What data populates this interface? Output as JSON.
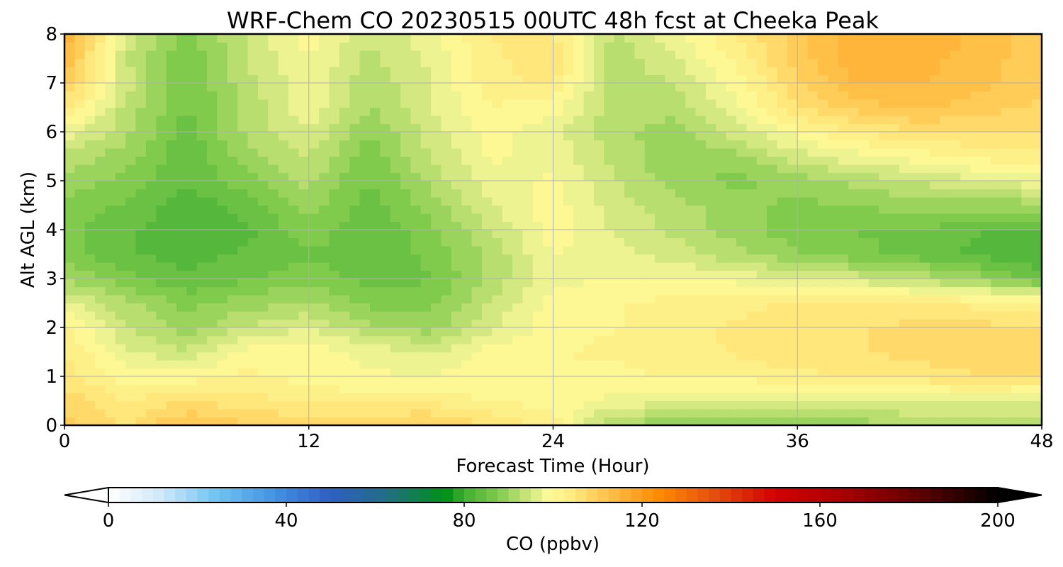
{
  "chart_data": {
    "type": "heatmap",
    "title": "WRF-Chem CO  20230515 00UTC 48h fcst at Cheeka Peak",
    "xlabel": "Forecast Time (Hour)",
    "ylabel": "Alt AGL (km)",
    "xlim": [
      0,
      48
    ],
    "ylim": [
      0,
      8
    ],
    "xticks": [
      0,
      12,
      24,
      36,
      48
    ],
    "yticks": [
      0,
      1,
      2,
      3,
      4,
      5,
      6,
      7,
      8
    ],
    "grid": true,
    "x": [
      0,
      3,
      6,
      9,
      12,
      15,
      18,
      21,
      24,
      27,
      30,
      33,
      36,
      39,
      42,
      45,
      48
    ],
    "y": [
      0,
      0.5,
      1,
      1.5,
      2,
      2.5,
      3,
      3.5,
      4,
      4.5,
      5,
      5.5,
      6,
      6.5,
      7,
      7.5,
      8
    ],
    "z": [
      [
        110,
        106,
        112,
        109,
        108,
        108,
        110,
        106,
        103,
        90,
        90,
        88,
        89,
        90,
        91,
        92,
        93
      ],
      [
        108,
        104,
        106,
        105,
        103,
        103,
        103,
        101,
        100,
        98,
        97,
        96,
        95,
        96,
        97,
        97,
        96
      ],
      [
        105,
        100,
        100,
        102,
        100,
        99,
        99,
        100,
        101,
        100,
        102,
        102,
        103,
        104,
        105,
        106,
        106
      ],
      [
        104,
        97,
        94,
        100,
        100,
        98,
        96,
        100,
        101,
        102,
        103,
        104,
        106,
        106,
        107,
        108,
        108
      ],
      [
        102,
        94,
        90,
        94,
        96,
        92,
        90,
        96,
        100,
        101,
        103,
        104,
        105,
        106,
        107,
        107,
        106
      ],
      [
        97,
        92,
        88,
        90,
        92,
        88,
        88,
        94,
        100,
        101,
        102,
        103,
        104,
        104,
        104,
        103,
        102
      ],
      [
        91,
        87,
        84,
        86,
        88,
        85,
        86,
        92,
        98,
        99,
        99,
        98,
        96,
        95,
        93,
        90,
        85
      ],
      [
        88,
        84,
        83,
        84,
        86,
        84,
        87,
        92,
        99,
        97,
        95,
        92,
        89,
        87,
        85,
        83,
        81
      ],
      [
        87,
        84,
        82,
        83,
        88,
        84,
        88,
        94,
        100,
        96,
        93,
        90,
        87,
        86,
        86,
        84,
        83
      ],
      [
        88,
        86,
        82,
        85,
        90,
        85,
        90,
        96,
        100,
        95,
        92,
        90,
        88,
        89,
        90,
        90,
        90
      ],
      [
        90,
        88,
        84,
        88,
        92,
        86,
        92,
        98,
        99,
        94,
        90,
        88,
        90,
        92,
        94,
        96,
        98
      ],
      [
        93,
        90,
        84,
        90,
        94,
        87,
        94,
        99,
        98,
        93,
        89,
        90,
        95,
        98,
        100,
        102,
        103
      ],
      [
        98,
        92,
        85,
        92,
        96,
        89,
        95,
        100,
        97,
        92,
        90,
        95,
        100,
        104,
        106,
        106,
        106
      ],
      [
        104,
        93,
        86,
        92,
        98,
        91,
        96,
        101,
        100,
        92,
        92,
        98,
        106,
        110,
        112,
        110,
        108
      ],
      [
        110,
        95,
        86,
        93,
        98,
        92,
        96,
        103,
        104,
        92,
        94,
        100,
        108,
        114,
        114,
        112,
        110
      ],
      [
        114,
        94,
        86,
        94,
        99,
        93,
        97,
        103,
        106,
        92,
        96,
        102,
        110,
        116,
        115,
        112,
        110
      ],
      [
        116,
        96,
        88,
        94,
        100,
        94,
        98,
        104,
        104,
        93,
        98,
        104,
        110,
        116,
        116,
        113,
        110
      ]
    ],
    "colorbar": {
      "label": "CO  (ppbv)",
      "min": 0,
      "max": 200,
      "ticks": [
        0,
        40,
        80,
        120,
        160,
        200
      ],
      "extend": "both",
      "colors": {
        "0": "#ffffff",
        "12": "#cfe8f8",
        "24": "#72c4f2",
        "38": "#4190e2",
        "50": "#2f5ec4",
        "62": "#236d88",
        "76": "#009215",
        "80": "#40ae32",
        "88": "#84cc4e",
        "94": "#c8e47a",
        "99": "#fdfa99",
        "104": "#ffec82",
        "110": "#ffcc57",
        "118": "#ffa528",
        "124": "#ff8a00",
        "136": "#e64f0e",
        "150": "#d20000",
        "165": "#a80000",
        "180": "#6a0000",
        "192": "#2a0000",
        "200": "#000000"
      }
    }
  }
}
